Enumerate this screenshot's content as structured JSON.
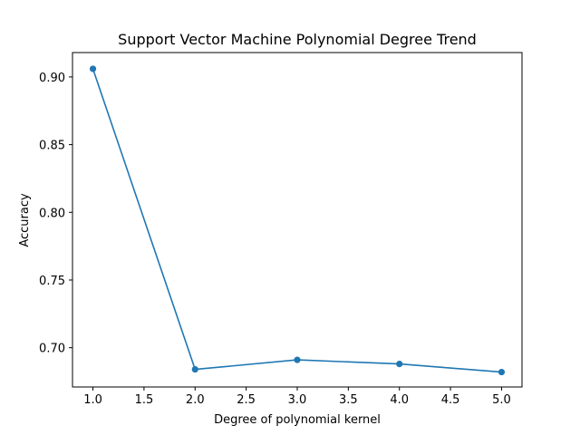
{
  "chart_data": {
    "type": "line",
    "title": "Support Vector Machine Polynomial Degree Trend",
    "xlabel": "Degree of polynomial kernel",
    "ylabel": "Accuracy",
    "xlim": [
      0.8,
      5.2
    ],
    "ylim": [
      0.671,
      0.918
    ],
    "xticks": [
      1.0,
      1.5,
      2.0,
      2.5,
      3.0,
      3.5,
      4.0,
      4.5,
      5.0
    ],
    "xtick_labels": [
      "1.0",
      "1.5",
      "2.0",
      "2.5",
      "3.0",
      "3.5",
      "4.0",
      "4.5",
      "5.0"
    ],
    "yticks": [
      0.7,
      0.75,
      0.8,
      0.85,
      0.9
    ],
    "ytick_labels": [
      "0.70",
      "0.75",
      "0.80",
      "0.85",
      "0.90"
    ],
    "grid": false,
    "series": [
      {
        "x": [
          1,
          2,
          3,
          4,
          5
        ],
        "values": [
          0.906,
          0.684,
          0.691,
          0.688,
          0.682
        ],
        "color": "#1f77b4",
        "marker": "circle"
      }
    ]
  }
}
